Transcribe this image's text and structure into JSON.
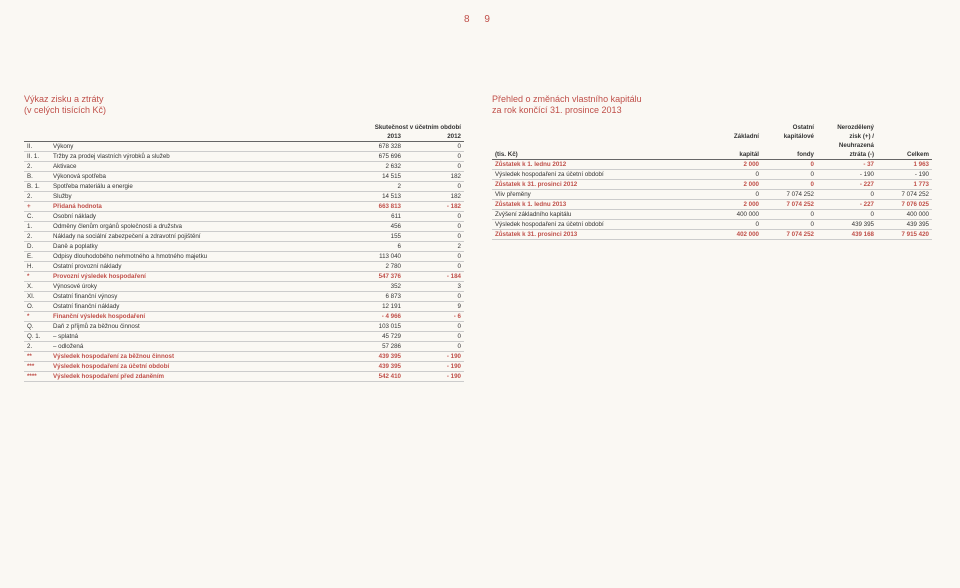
{
  "page_numbers": "8   9",
  "left": {
    "title": "Výkaz zisku a ztráty\n(v celých tisících Kč)",
    "period_header": "Skutečnost v účetním období",
    "col_year_a": "2013",
    "col_year_b": "2012",
    "rows": [
      {
        "idx": "II.",
        "label": "Výkony",
        "a": "678 328",
        "b": "0",
        "em": false
      },
      {
        "idx": "II.  1.",
        "label": "Tržby za prodej vlastních výrobků a služeb",
        "a": "675 696",
        "b": "0",
        "em": false
      },
      {
        "idx": "2.",
        "label": "Aktivace",
        "a": "2 632",
        "b": "0",
        "em": false
      },
      {
        "idx": "B.",
        "label": "Výkonová spotřeba",
        "a": "14 515",
        "b": "182",
        "em": false
      },
      {
        "idx": "B.   1.",
        "label": "Spotřeba materiálu a energie",
        "a": "2",
        "b": "0",
        "em": false
      },
      {
        "idx": "2.",
        "label": "Služby",
        "a": "14 513",
        "b": "182",
        "em": false
      },
      {
        "idx": "+",
        "label": "Přidaná hodnota",
        "a": "663 813",
        "b": "- 182",
        "em": true
      },
      {
        "idx": "C.",
        "label": "Osobní náklady",
        "a": "611",
        "b": "0",
        "em": false
      },
      {
        "idx": "1.",
        "label": "Odměny členům orgánů společnosti a družstva",
        "a": "456",
        "b": "0",
        "em": false
      },
      {
        "idx": "2.",
        "label": "Náklady na sociální zabezpečení a zdravotní pojištění",
        "a": "155",
        "b": "0",
        "em": false
      },
      {
        "idx": "D.",
        "label": "Daně a poplatky",
        "a": "6",
        "b": "2",
        "em": false
      },
      {
        "idx": "E.",
        "label": "Odpisy dlouhodobého nehmotného a hmotného majetku",
        "a": "113 040",
        "b": "0",
        "em": false
      },
      {
        "idx": "H.",
        "label": "Ostatní provozní náklady",
        "a": "2 780",
        "b": "0",
        "em": false
      },
      {
        "idx": "*",
        "label": "Provozní výsledek hospodaření",
        "a": "547 376",
        "b": "- 184",
        "em": true
      },
      {
        "idx": "X.",
        "label": "Výnosové úroky",
        "a": "352",
        "b": "3",
        "em": false
      },
      {
        "idx": "XI.",
        "label": "Ostatní finanční výnosy",
        "a": "6 873",
        "b": "0",
        "em": false
      },
      {
        "idx": "O.",
        "label": "Ostatní finanční náklady",
        "a": "12 191",
        "b": "9",
        "em": false
      },
      {
        "idx": "*",
        "label": "Finanční výsledek hospodaření",
        "a": "- 4 966",
        "b": "- 6",
        "em": true
      },
      {
        "idx": "Q.",
        "label": "Daň z příjmů za běžnou činnost",
        "a": "103 015",
        "b": "0",
        "em": false
      },
      {
        "idx": "Q.   1.",
        "label": "– splatná",
        "a": "45 729",
        "b": "0",
        "em": false
      },
      {
        "idx": "2.",
        "label": "– odložená",
        "a": "57 286",
        "b": "0",
        "em": false
      },
      {
        "idx": "**",
        "label": "Výsledek hospodaření za běžnou činnost",
        "a": "439 395",
        "b": "- 190",
        "em": true
      },
      {
        "idx": "***",
        "label": "Výsledek hospodaření za účetní období",
        "a": "439 395",
        "b": "- 190",
        "em": true
      },
      {
        "idx": "****",
        "label": "Výsledek hospodaření před zdaněním",
        "a": "542 410",
        "b": "- 190",
        "em": true
      }
    ]
  },
  "right": {
    "title": "Přehled o změnách vlastního kapitálu\nza rok končící 31. prosince 2013",
    "headers": {
      "unit": "(tis. Kč)",
      "c1a": "",
      "c1b": "Základní",
      "c1c": "kapitál",
      "c2a": "Ostatní",
      "c2b": "kapitálové",
      "c2c": "fondy",
      "c3a": "Nerozdělený",
      "c3b": "zisk (+) /",
      "c3c": "Neuhrazená",
      "c3d": "ztráta (-)",
      "c4": "Celkem"
    },
    "rows": [
      {
        "label": "Zůstatek k 1. lednu 2012",
        "v": [
          "2 000",
          "0",
          "- 37",
          "1 963"
        ],
        "em": true
      },
      {
        "label": "Výsledek hospodaření za účetní období",
        "v": [
          "0",
          "0",
          "- 190",
          "- 190"
        ],
        "em": false
      },
      {
        "label": "Zůstatek k 31. prosinci 2012",
        "v": [
          "2 000",
          "0",
          "- 227",
          "1 773"
        ],
        "em": true
      },
      {
        "label": "Vliv přeměny",
        "v": [
          "0",
          "7 074 252",
          "0",
          "7 074 252"
        ],
        "em": false
      },
      {
        "label": "Zůstatek k 1. lednu 2013",
        "v": [
          "2 000",
          "7 074 252",
          "- 227",
          "7 076 025"
        ],
        "em": true
      },
      {
        "label": "Zvýšení základního kapitálu",
        "v": [
          "400 000",
          "0",
          "0",
          "400 000"
        ],
        "em": false
      },
      {
        "label": "Výsledek hospodaření za účetní období",
        "v": [
          "0",
          "0",
          "439 395",
          "439 395"
        ],
        "em": false
      },
      {
        "label": "Zůstatek k 31. prosinci 2013",
        "v": [
          "402 000",
          "7 074 252",
          "439 168",
          "7 915 420"
        ],
        "em": true
      }
    ]
  },
  "colors": {
    "accent": "#c0504a",
    "text": "#333333",
    "bg": "#faf8f3",
    "rule": "#cccccc"
  }
}
